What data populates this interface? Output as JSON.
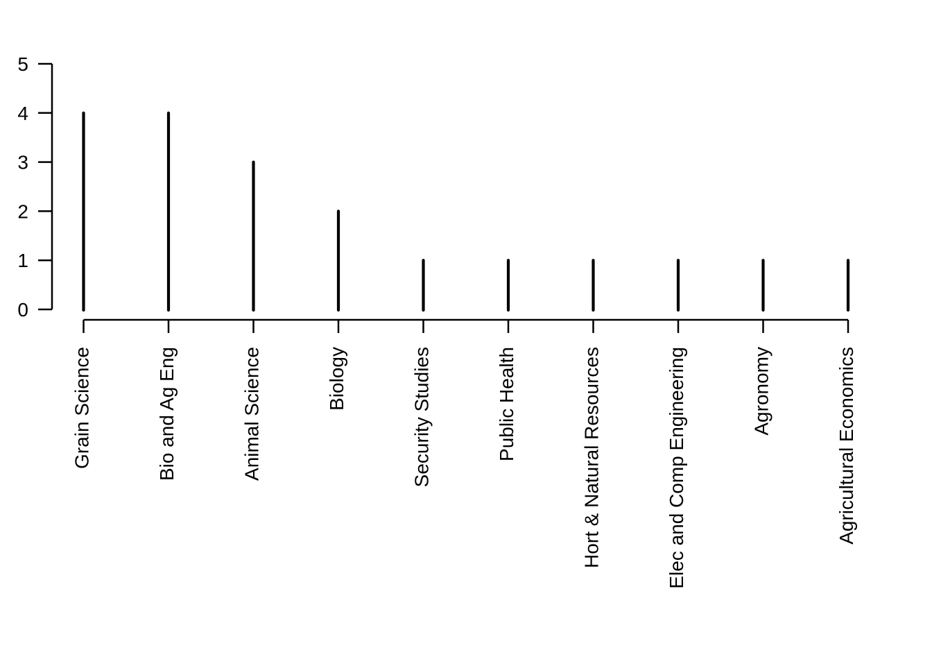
{
  "chart_data": {
    "type": "bar",
    "variant": "spike",
    "title": "",
    "xlabel": "",
    "ylabel": "",
    "categories": [
      "Grain Science",
      "Bio and Ag Eng",
      "Animal Science",
      "Biology",
      "Security Studies",
      "Public Health",
      "Hort & Natural Resources",
      "Elec and Comp Engineering",
      "Agronomy",
      "Agricultural Economics"
    ],
    "values": [
      4,
      4,
      3,
      2,
      1,
      1,
      1,
      1,
      1,
      1
    ],
    "ylim": [
      0,
      5
    ],
    "yticks": [
      0,
      1,
      2,
      3,
      4,
      5
    ],
    "x_label_rotation_deg": 90,
    "grid": false,
    "legend": false
  },
  "style": {
    "foreground": "#000000",
    "background": "#ffffff"
  }
}
